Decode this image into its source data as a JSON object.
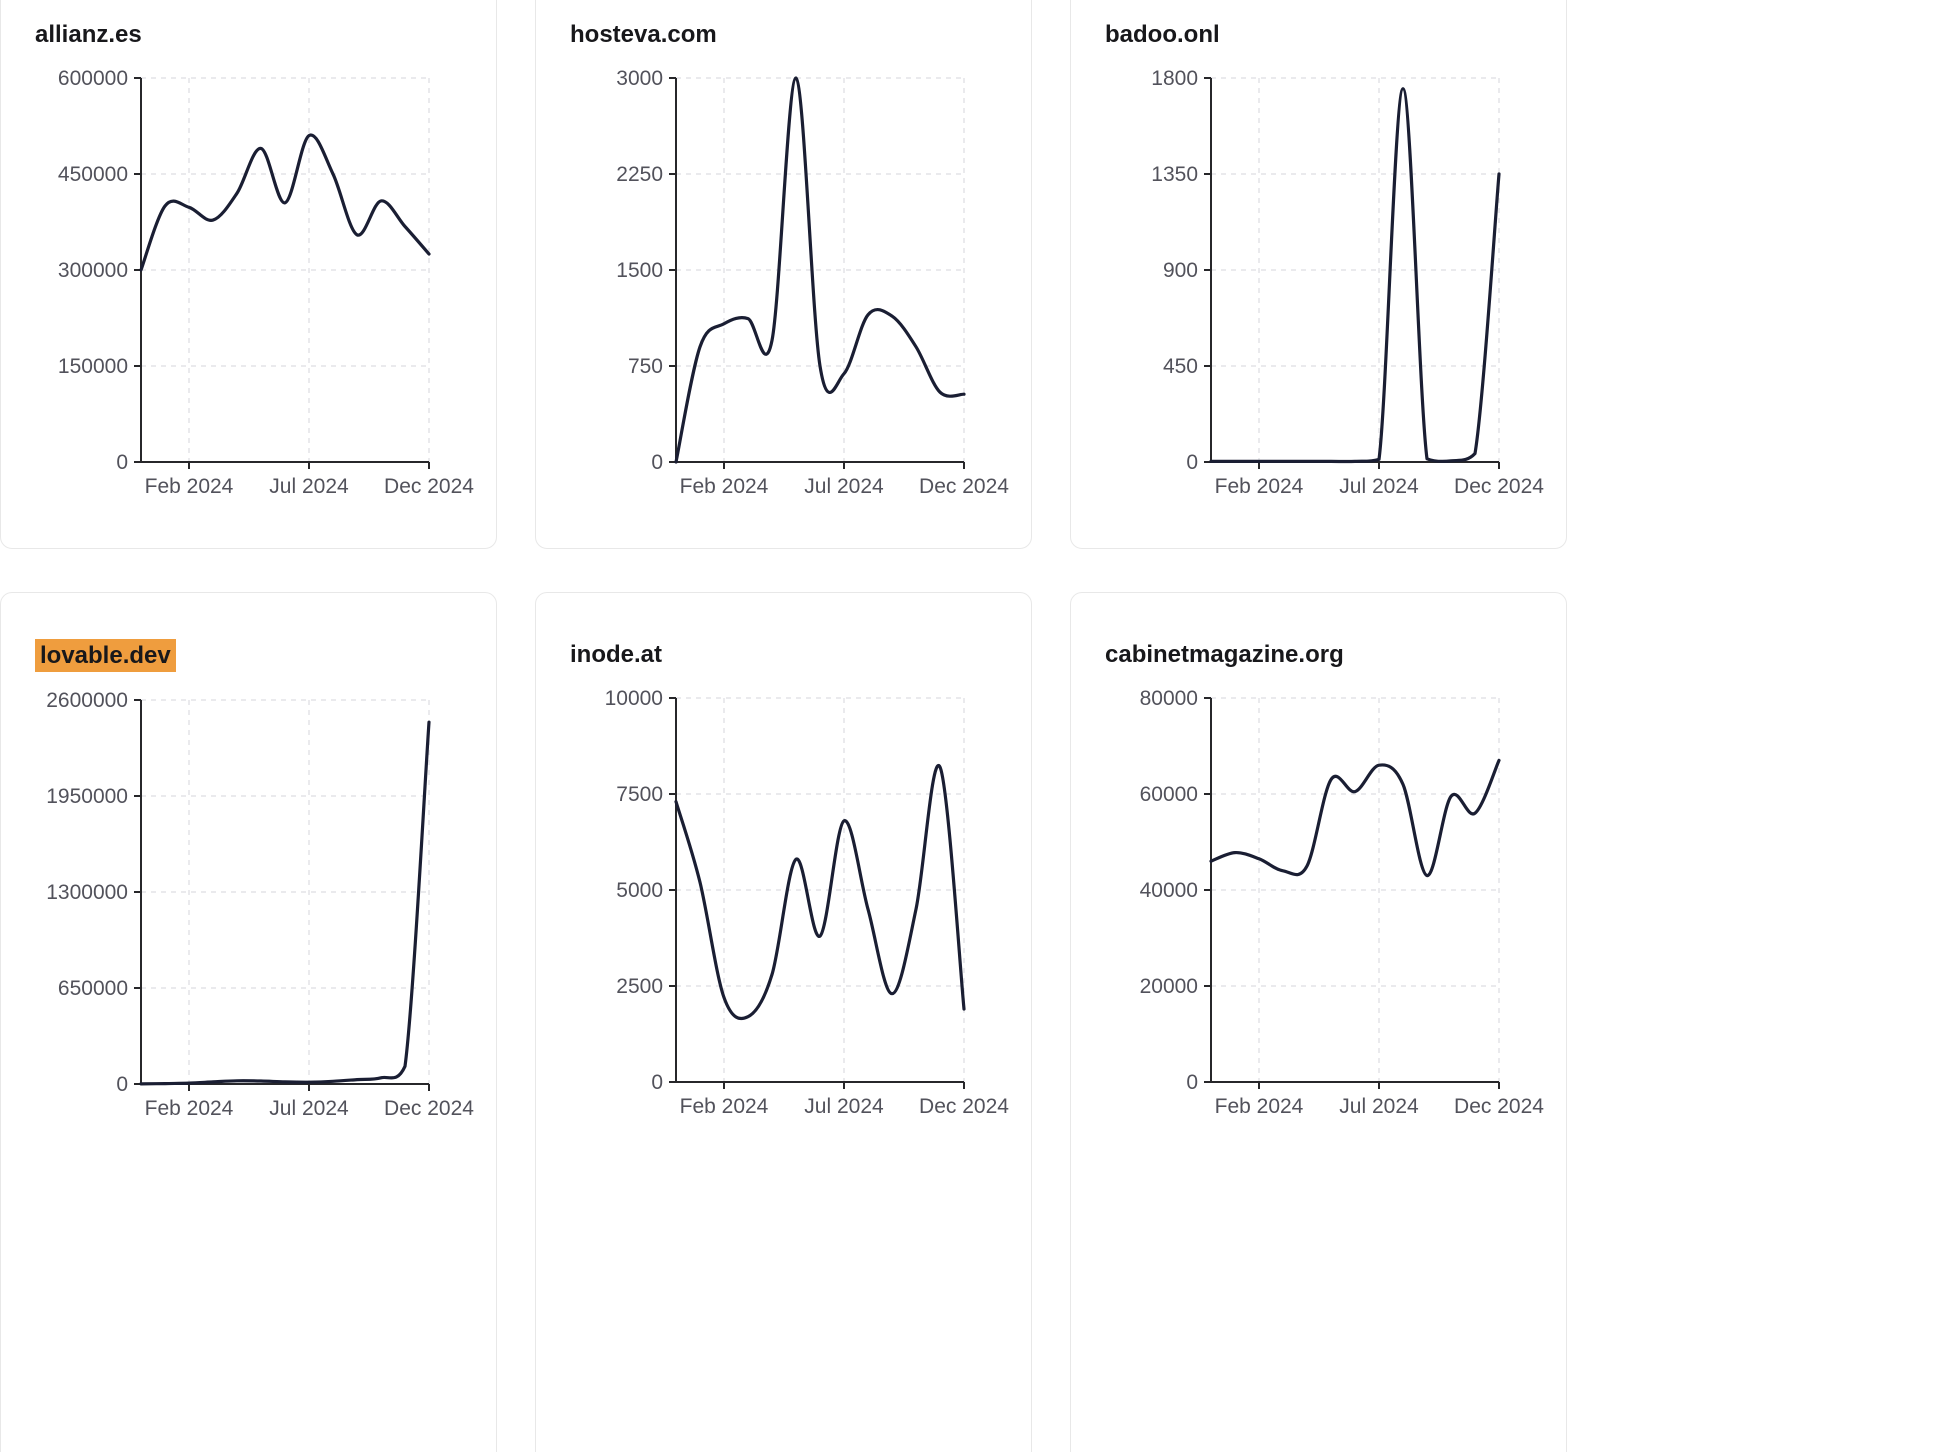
{
  "page": {
    "background": "#ffffff"
  },
  "style": {
    "line_color": "#1a1e33",
    "axis_color": "#27272a",
    "grid_color": "#e4e4e7",
    "tick_label_color": "#52525b",
    "title_color": "#18181b",
    "highlight_color": "#ef9d3e",
    "card_border_color": "#e8e8e8"
  },
  "cards": [
    {
      "title": "allianz.es",
      "highlighted": false
    },
    {
      "title": "hosteva.com",
      "highlighted": false
    },
    {
      "title": "badoo.onl",
      "highlighted": false
    },
    {
      "title": "lovable.dev",
      "highlighted": true
    },
    {
      "title": "inode.at",
      "highlighted": false
    },
    {
      "title": "cabinetmagazine.org",
      "highlighted": false
    }
  ],
  "x_tick_labels": [
    "Feb 2024",
    "Jul 2024",
    "Dec 2024"
  ],
  "chart_data": [
    {
      "type": "line",
      "title": "allianz.es",
      "xlabel": "",
      "ylabel": "",
      "x": [
        "Dec 2023",
        "Jan 2024",
        "Feb 2024",
        "Mar 2024",
        "Apr 2024",
        "May 2024",
        "Jun 2024",
        "Jul 2024",
        "Aug 2024",
        "Sep 2024",
        "Oct 2024",
        "Nov 2024",
        "Dec 2024"
      ],
      "values": [
        300000,
        400000,
        398000,
        378000,
        420000,
        490000,
        405000,
        510000,
        450000,
        355000,
        408000,
        368000,
        325000
      ],
      "yticks": [
        0,
        150000,
        300000,
        450000,
        600000
      ],
      "ylim": [
        0,
        600000
      ],
      "xticks": [
        {
          "label": "Feb 2024",
          "index": 2
        },
        {
          "label": "Jul 2024",
          "index": 7
        },
        {
          "label": "Dec 2024",
          "index": 12
        }
      ],
      "grid": "dashed",
      "legend": "none"
    },
    {
      "type": "line",
      "title": "hosteva.com",
      "xlabel": "",
      "ylabel": "",
      "x": [
        "Dec 2023",
        "Jan 2024",
        "Feb 2024",
        "Mar 2024",
        "Apr 2024",
        "May 2024",
        "Jun 2024",
        "Jul 2024",
        "Aug 2024",
        "Sep 2024",
        "Oct 2024",
        "Nov 2024",
        "Dec 2024"
      ],
      "values": [
        0,
        900,
        1080,
        1120,
        950,
        3000,
        750,
        690,
        1150,
        1140,
        900,
        545,
        530
      ],
      "yticks": [
        0,
        750,
        1500,
        2250,
        3000
      ],
      "ylim": [
        0,
        3000
      ],
      "xticks": [
        {
          "label": "Feb 2024",
          "index": 2
        },
        {
          "label": "Jul 2024",
          "index": 7
        },
        {
          "label": "Dec 2024",
          "index": 12
        }
      ],
      "grid": "dashed",
      "legend": "none"
    },
    {
      "type": "line",
      "title": "badoo.onl",
      "xlabel": "",
      "ylabel": "",
      "x": [
        "Dec 2023",
        "Jan 2024",
        "Feb 2024",
        "Mar 2024",
        "Apr 2024",
        "May 2024",
        "Jun 2024",
        "Jul 2024",
        "Aug 2024",
        "Sep 2024",
        "Oct 2024",
        "Nov 2024",
        "Dec 2024"
      ],
      "values": [
        3,
        3,
        3,
        3,
        3,
        3,
        3,
        12,
        1750,
        15,
        5,
        40,
        1350
      ],
      "yticks": [
        0,
        450,
        900,
        1350,
        1800
      ],
      "ylim": [
        0,
        1800
      ],
      "xticks": [
        {
          "label": "Feb 2024",
          "index": 2
        },
        {
          "label": "Jul 2024",
          "index": 7
        },
        {
          "label": "Dec 2024",
          "index": 12
        }
      ],
      "grid": "dashed",
      "legend": "none"
    },
    {
      "type": "line",
      "title": "lovable.dev",
      "xlabel": "",
      "ylabel": "",
      "x": [
        "Dec 2023",
        "Jan 2024",
        "Feb 2024",
        "Mar 2024",
        "Apr 2024",
        "May 2024",
        "Jun 2024",
        "Jul 2024",
        "Aug 2024",
        "Sep 2024",
        "Oct 2024",
        "Nov 2024",
        "Dec 2024"
      ],
      "values": [
        1000,
        3000,
        6000,
        14000,
        22000,
        20000,
        14000,
        12000,
        18000,
        30000,
        42000,
        120000,
        2450000
      ],
      "yticks": [
        0,
        650000,
        1300000,
        1950000,
        2600000
      ],
      "ylim": [
        0,
        2600000
      ],
      "xticks": [
        {
          "label": "Feb 2024",
          "index": 2
        },
        {
          "label": "Jul 2024",
          "index": 7
        },
        {
          "label": "Dec 2024",
          "index": 12
        }
      ],
      "grid": "dashed",
      "legend": "none"
    },
    {
      "type": "line",
      "title": "inode.at",
      "xlabel": "",
      "ylabel": "",
      "x": [
        "Dec 2023",
        "Jan 2024",
        "Feb 2024",
        "Mar 2024",
        "Apr 2024",
        "May 2024",
        "Jun 2024",
        "Jul 2024",
        "Aug 2024",
        "Sep 2024",
        "Oct 2024",
        "Nov 2024",
        "Dec 2024"
      ],
      "values": [
        7300,
        5200,
        2200,
        1700,
        2800,
        5800,
        3800,
        6800,
        4500,
        2300,
        4500,
        8200,
        1900
      ],
      "yticks": [
        0,
        2500,
        5000,
        7500,
        10000
      ],
      "ylim": [
        0,
        10000
      ],
      "xticks": [
        {
          "label": "Feb 2024",
          "index": 2
        },
        {
          "label": "Jul 2024",
          "index": 7
        },
        {
          "label": "Dec 2024",
          "index": 12
        }
      ],
      "grid": "dashed",
      "legend": "none"
    },
    {
      "type": "line",
      "title": "cabinetmagazine.org",
      "xlabel": "",
      "ylabel": "",
      "x": [
        "Dec 2023",
        "Jan 2024",
        "Feb 2024",
        "Mar 2024",
        "Apr 2024",
        "May 2024",
        "Jun 2024",
        "Jul 2024",
        "Aug 2024",
        "Sep 2024",
        "Oct 2024",
        "Nov 2024",
        "Dec 2024"
      ],
      "values": [
        46000,
        47800,
        46500,
        44000,
        45000,
        63000,
        60500,
        66000,
        62000,
        43000,
        59500,
        56000,
        67000
      ],
      "yticks": [
        0,
        20000,
        40000,
        60000,
        80000
      ],
      "ylim": [
        0,
        80000
      ],
      "xticks": [
        {
          "label": "Feb 2024",
          "index": 2
        },
        {
          "label": "Jul 2024",
          "index": 7
        },
        {
          "label": "Dec 2024",
          "index": 12
        }
      ],
      "grid": "dashed",
      "legend": "none"
    }
  ]
}
